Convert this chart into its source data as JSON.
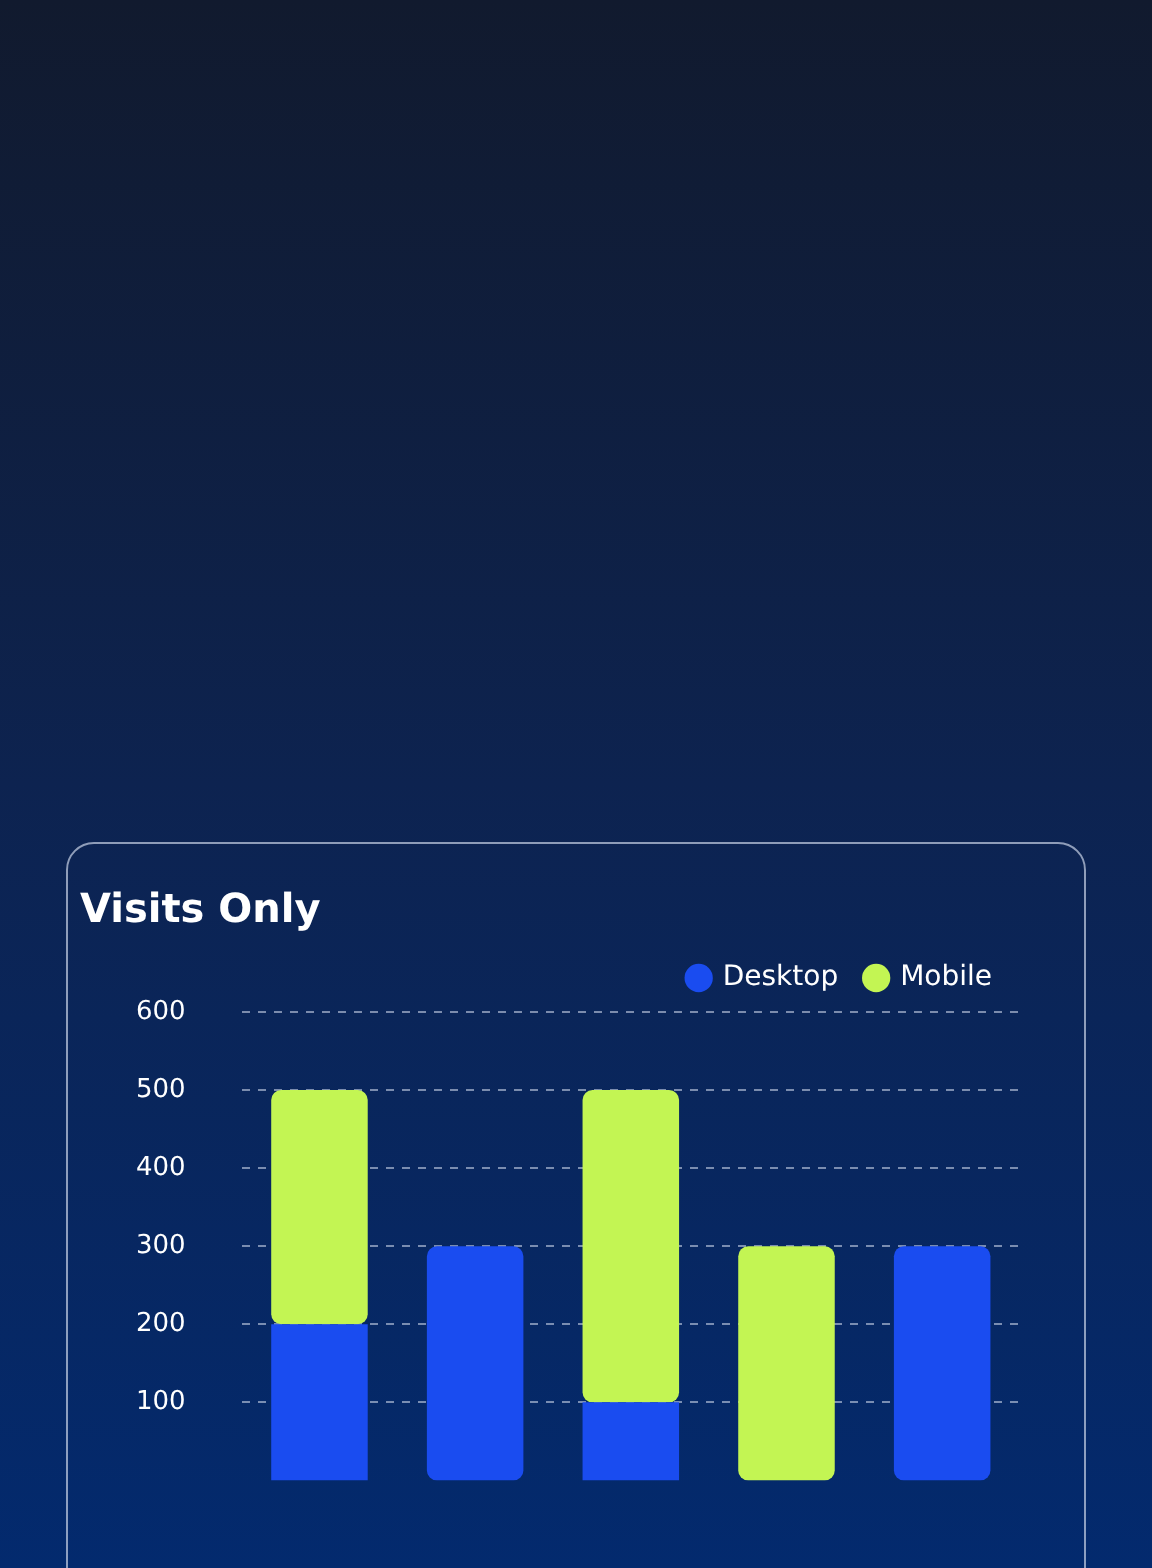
{
  "chart_data": {
    "type": "bar",
    "title": "Visits Only",
    "categories": [
      null,
      null,
      null,
      null,
      null
    ],
    "series": [
      {
        "name": "Desktop",
        "color": "#1a4cf0",
        "values": [
          200,
          300,
          100,
          0,
          300
        ]
      },
      {
        "name": "Mobile",
        "color": "#c3f553",
        "values": [
          300,
          0,
          400,
          300,
          0
        ]
      }
    ],
    "stacked": true,
    "ylim": [
      0,
      600
    ],
    "yticks": [
      100,
      200,
      300,
      400,
      500,
      600
    ],
    "grid": "y",
    "legend": "top right"
  }
}
